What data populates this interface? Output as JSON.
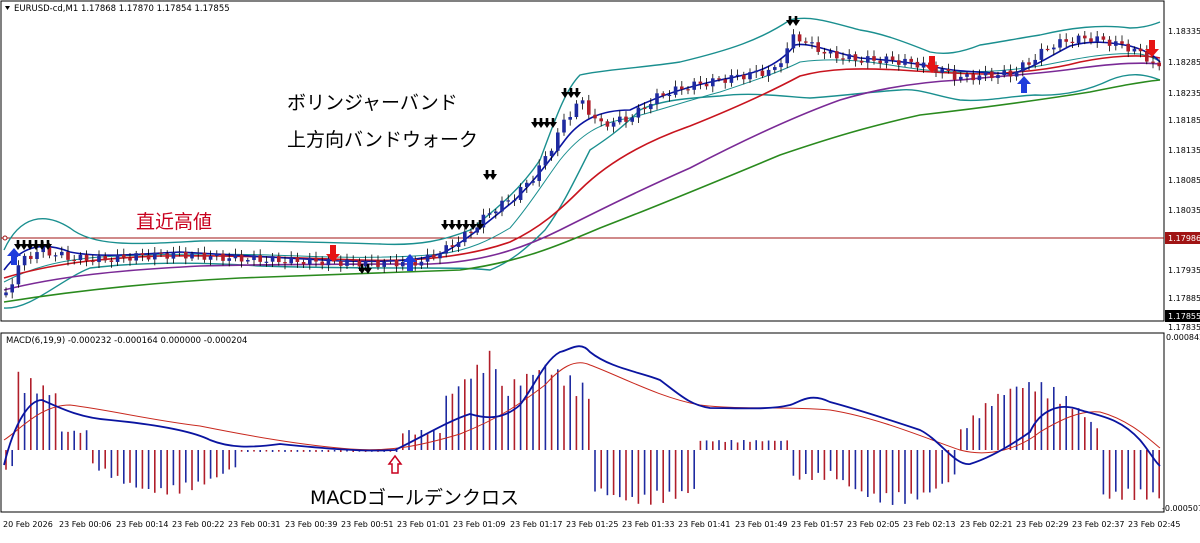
{
  "main_chart": {
    "symbol_label": "EURUSD-cd,M1  1.17868 1.17870 1.17854 1.17855",
    "price_ticks": [
      "1.18335",
      "1.18285",
      "1.18235",
      "1.18185",
      "1.18135",
      "1.18085",
      "1.18035",
      "1.17986",
      "1.17935",
      "1.17885",
      "1.17855",
      "1.17835"
    ],
    "horizontal_line_price": "1.17986",
    "current_price": "1.17855",
    "annotations": {
      "bollinger_title": "ボリンジャーバンド",
      "band_walk": "上方向バンドウォーク",
      "recent_high": "直近高値",
      "macd_cross": "MACDゴールデンクロス"
    }
  },
  "macd_panel": {
    "label": "MACD(6,19,9) -0.000232 -0.000164 0.000000 -0.000204",
    "top_tick": "0.000842",
    "bottom_tick": "-0.000507"
  },
  "time_axis": [
    "20 Feb 2026",
    "23 Feb 00:06",
    "23 Feb 00:14",
    "23 Feb 00:22",
    "23 Feb 00:31",
    "23 Feb 00:39",
    "23 Feb 00:51",
    "23 Feb 01:01",
    "23 Feb 01:09",
    "23 Feb 01:17",
    "23 Feb 01:25",
    "23 Feb 01:33",
    "23 Feb 01:41",
    "23 Feb 01:49",
    "23 Feb 01:57",
    "23 Feb 02:05",
    "23 Feb 02:13",
    "23 Feb 02:21",
    "23 Feb 02:29",
    "23 Feb 02:37",
    "23 Feb 02:45"
  ],
  "colors": {
    "bollinger": "#1a8f8f",
    "ma_fast": "#0a14a0",
    "ma_mid": "#c8141e",
    "ma_slow": "#7a2a96",
    "ma_long": "#2a8a1e",
    "buy_arrow": "#1e3cdc",
    "sell_arrow": "#e61414",
    "macd_line": "#0a14a0",
    "signal_line": "#c8281e",
    "hist_pos": "#b01e2a",
    "hist_neg": "#1e2aa0",
    "level_line": "#a01414"
  },
  "icons": {
    "menu": "triangle-down-icon",
    "buy": "up-arrow-icon",
    "sell": "down-arrow-icon",
    "cross": "hollow-up-arrow-icon"
  }
}
